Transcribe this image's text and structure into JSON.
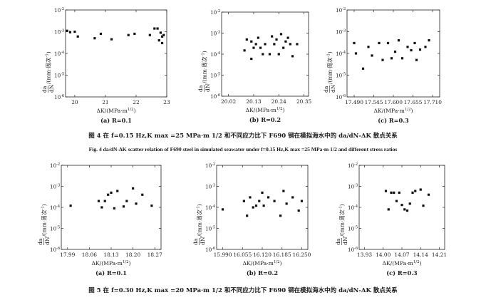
{
  "units": {
    "xlabel": "ΔK/(MPa·m",
    "xlabel_sup": "1/2",
    "xlabel_close": ")",
    "ylabel_frac_top": "da",
    "ylabel_frac_bottom": "dN",
    "ylabel_rest": "/(mm·周次",
    "ylabel_sup": "-1",
    "ylabel_close": ")"
  },
  "figure4": {
    "caption_cn": "图 4  在 f=0.15 Hz,K max =25 MPa·m 1/2 和不同应力比下 F690 钢在模拟海水中的 da/dN-ΔK 散点关系",
    "caption_en": "Fig. 4  da/dN-ΔK scatter relation of F690 steel in simulated seawater under f=0.15 Hz,K max =25 MPa·m 1/2 and different stress ratios"
  },
  "figure5": {
    "caption_cn": "图 5  在 f=0.30 Hz,K max =20 MPa·m 1/2 和不同应力比下 F690 钢在模拟海水中的 da/dN-ΔK 散点关系"
  },
  "chart_data": [
    {
      "type": "scatter",
      "panel": "fig4a",
      "subtitle": "(a) R=0.1",
      "x_ticks": [
        "20",
        "21",
        "22",
        "23"
      ],
      "xlim": [
        19.7,
        23.0
      ],
      "y_scale": "log",
      "y_ticks": [
        "10^-2",
        "10^-3",
        "10^-4",
        "10^-5",
        "10^-6"
      ],
      "ylim_exp": [
        -6,
        -2
      ],
      "points": [
        [
          19.75,
          0.0011
        ],
        [
          19.85,
          0.00095
        ],
        [
          20.0,
          0.001
        ],
        [
          20.1,
          0.0006
        ],
        [
          20.65,
          0.0005
        ],
        [
          20.85,
          0.0008
        ],
        [
          21.2,
          0.00045
        ],
        [
          21.75,
          0.0007
        ],
        [
          21.95,
          0.0008
        ],
        [
          22.45,
          0.0007
        ],
        [
          22.6,
          0.0014
        ],
        [
          22.7,
          0.0014
        ],
        [
          22.75,
          0.0004
        ],
        [
          22.8,
          0.0009
        ],
        [
          22.85,
          0.0003
        ],
        [
          22.9,
          0.0007
        ],
        [
          22.85,
          0.0006
        ]
      ]
    },
    {
      "type": "scatter",
      "panel": "fig4b",
      "subtitle": "(b) R=0.2",
      "x_ticks": [
        "20.02",
        "20.13",
        "20.24",
        "20.35"
      ],
      "xlim": [
        19.99,
        20.37
      ],
      "y_scale": "log",
      "y_ticks": [
        "10^-2",
        "10^-3",
        "10^-4",
        "10^-5",
        "10^-6"
      ],
      "ylim_exp": [
        -6,
        -2
      ],
      "points": [
        [
          20.09,
          0.00015
        ],
        [
          20.1,
          0.0005
        ],
        [
          20.12,
          0.0004
        ],
        [
          20.13,
          0.0002
        ],
        [
          20.14,
          0.0003
        ],
        [
          20.15,
          0.0006
        ],
        [
          20.16,
          0.0002
        ],
        [
          20.17,
          0.0001
        ],
        [
          20.18,
          0.0003
        ],
        [
          20.2,
          0.0001
        ],
        [
          20.21,
          0.0007
        ],
        [
          20.22,
          0.0003
        ],
        [
          20.23,
          0.0005
        ],
        [
          20.24,
          0.0001
        ],
        [
          20.25,
          0.0009
        ],
        [
          20.26,
          0.0002
        ],
        [
          20.27,
          0.0004
        ],
        [
          20.28,
          0.0006
        ],
        [
          20.29,
          0.0003
        ],
        [
          20.3,
          8e-05
        ],
        [
          20.32,
          0.0003
        ],
        [
          20.12,
          6e-05
        ]
      ]
    },
    {
      "type": "scatter",
      "panel": "fig4c",
      "subtitle": "(c) R=0.3",
      "x_ticks": [
        "17.490",
        "17.545",
        "17.600",
        "17.655",
        "17.710"
      ],
      "xlim": [
        17.47,
        17.73
      ],
      "y_scale": "log",
      "y_ticks": [
        "10^-2",
        "10^-3",
        "10^-4",
        "10^-5",
        "10^-6"
      ],
      "ylim_exp": [
        -6,
        -2
      ],
      "points": [
        [
          17.49,
          0.0003
        ],
        [
          17.495,
          0.0001
        ],
        [
          17.515,
          2e-05
        ],
        [
          17.53,
          0.0002
        ],
        [
          17.54,
          8e-05
        ],
        [
          17.56,
          0.0003
        ],
        [
          17.57,
          5e-05
        ],
        [
          17.585,
          0.0003
        ],
        [
          17.595,
          6e-05
        ],
        [
          17.605,
          0.00012
        ],
        [
          17.615,
          0.0004
        ],
        [
          17.625,
          6e-05
        ],
        [
          17.64,
          0.0002
        ],
        [
          17.65,
          0.00014
        ],
        [
          17.66,
          0.0003
        ],
        [
          17.665,
          5e-05
        ],
        [
          17.675,
          0.00015
        ],
        [
          17.69,
          0.0002
        ],
        [
          17.7,
          0.0004
        ]
      ]
    },
    {
      "type": "scatter",
      "panel": "fig5a",
      "subtitle": "(a) R=0.1",
      "x_ticks": [
        "17.99",
        "18.06",
        "18.13",
        "18.20",
        "18.27"
      ],
      "xlim": [
        17.97,
        18.29
      ],
      "y_scale": "log",
      "y_ticks": [
        "10^-2",
        "10^-3",
        "10^-4",
        "10^-5",
        "10^-6"
      ],
      "ylim_exp": [
        -6,
        -2
      ],
      "points": [
        [
          18.0,
          0.00012
        ],
        [
          18.09,
          0.0002
        ],
        [
          18.1,
          0.0001
        ],
        [
          18.11,
          0.0002
        ],
        [
          18.12,
          0.0004
        ],
        [
          18.13,
          0.0005
        ],
        [
          18.14,
          9e-05
        ],
        [
          18.15,
          0.0006
        ],
        [
          18.17,
          0.00011
        ],
        [
          18.18,
          0.0002
        ],
        [
          18.2,
          0.0008
        ],
        [
          18.21,
          0.00015
        ],
        [
          18.23,
          0.0004
        ],
        [
          18.26,
          0.00012
        ]
      ]
    },
    {
      "type": "scatter",
      "panel": "fig5b",
      "subtitle": "(b) R=0.2",
      "x_ticks": [
        "15.990",
        "16.055",
        "16.120",
        "16.185",
        "16.250"
      ],
      "xlim": [
        15.97,
        16.27
      ],
      "y_scale": "log",
      "y_ticks": [
        "10^-2",
        "10^-3",
        "10^-4",
        "10^-5",
        "10^-6"
      ],
      "ylim_exp": [
        -6,
        -2
      ],
      "points": [
        [
          15.99,
          8e-05
        ],
        [
          16.06,
          0.0002
        ],
        [
          16.07,
          4e-05
        ],
        [
          16.08,
          0.0003
        ],
        [
          16.09,
          0.0001
        ],
        [
          16.1,
          0.00012
        ],
        [
          16.11,
          0.0002
        ],
        [
          16.12,
          0.0005
        ],
        [
          16.125,
          0.00012
        ],
        [
          16.14,
          0.0003
        ],
        [
          16.16,
          0.0002
        ],
        [
          16.18,
          4e-05
        ],
        [
          16.19,
          0.0006
        ],
        [
          16.2,
          0.00015
        ],
        [
          16.22,
          0.0003
        ],
        [
          16.24,
          7e-05
        ],
        [
          16.25,
          0.0002
        ]
      ]
    },
    {
      "type": "scatter",
      "panel": "fig5c",
      "subtitle": "(c) R=0.3",
      "x_ticks": [
        "13.93",
        "14.00",
        "14.07",
        "14.14",
        "14.21"
      ],
      "xlim": [
        13.91,
        14.23
      ],
      "y_scale": "log",
      "y_ticks": [
        "10^-2",
        "10^-3",
        "10^-4",
        "10^-5",
        "10^-6"
      ],
      "ylim_exp": [
        -6,
        -2
      ],
      "points": [
        [
          14.01,
          0.0006
        ],
        [
          14.02,
          8e-05
        ],
        [
          14.03,
          0.0005
        ],
        [
          14.04,
          0.0005
        ],
        [
          14.05,
          0.0002
        ],
        [
          14.06,
          0.0005
        ],
        [
          14.07,
          0.00013
        ],
        [
          14.08,
          8e-05
        ],
        [
          14.09,
          7e-05
        ],
        [
          14.1,
          0.00015
        ],
        [
          14.11,
          0.0005
        ],
        [
          14.12,
          0.0006
        ],
        [
          14.14,
          0.0007
        ],
        [
          14.15,
          0.00012
        ],
        [
          14.17,
          0.0004
        ]
      ]
    }
  ]
}
